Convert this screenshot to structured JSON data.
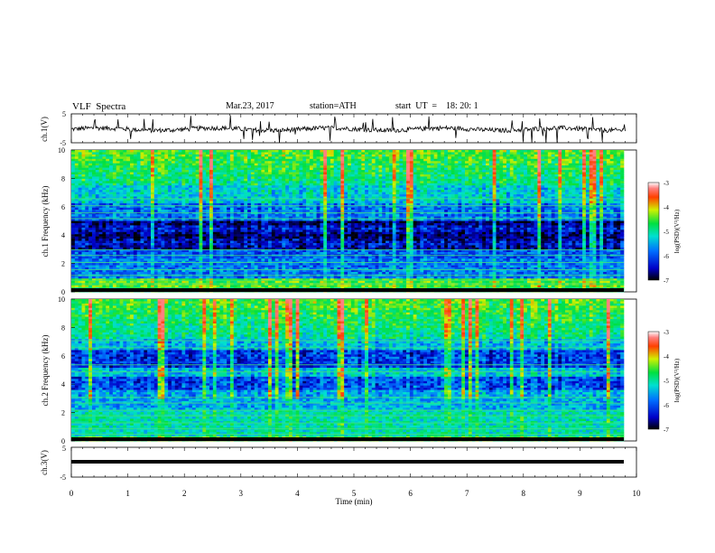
{
  "header": {
    "title": "VLF  Spectra",
    "date": "Mar.23, 2017",
    "station": "station=ATH",
    "start": "start  UT  =    18: 20: 1"
  },
  "chart_data": [
    {
      "type": "line",
      "ylabel": "ch.1(V)",
      "ylim": [
        -5,
        5
      ],
      "yticks": [
        "5",
        "-5"
      ],
      "xlim": [
        0,
        10
      ]
    },
    {
      "type": "heatmap",
      "ylabel": "ch.1 Frequency (kHz)",
      "ylim": [
        0,
        10
      ],
      "yticks": [
        "0",
        "2",
        "4",
        "6",
        "8",
        "10"
      ],
      "xlim": [
        0,
        10
      ],
      "colorbar": {
        "label": "log(PSD)(V²/Hz)",
        "ticks": [
          "-3",
          "-4",
          "-5",
          "-6",
          "-7"
        ],
        "range": [
          -7,
          -3
        ]
      }
    },
    {
      "type": "heatmap",
      "ylabel": "ch.2 Frequency (kHz)",
      "ylim": [
        0,
        10
      ],
      "yticks": [
        "0",
        "2",
        "4",
        "6",
        "8",
        "10"
      ],
      "xlim": [
        0,
        10
      ],
      "colorbar": {
        "label": "log(PSD)(V²/Hz)",
        "ticks": [
          "-3",
          "-4",
          "-5",
          "-6",
          "-7"
        ],
        "range": [
          -7,
          -3
        ]
      }
    },
    {
      "type": "line",
      "ylabel": "ch.3(V)",
      "ylim": [
        -5,
        5
      ],
      "yticks": [
        "5",
        "-5"
      ],
      "xlim": [
        0,
        10
      ],
      "xlabel": "Time  (min)",
      "xticks": [
        "0",
        "1",
        "2",
        "3",
        "4",
        "5",
        "6",
        "7",
        "8",
        "9",
        "10"
      ]
    }
  ]
}
